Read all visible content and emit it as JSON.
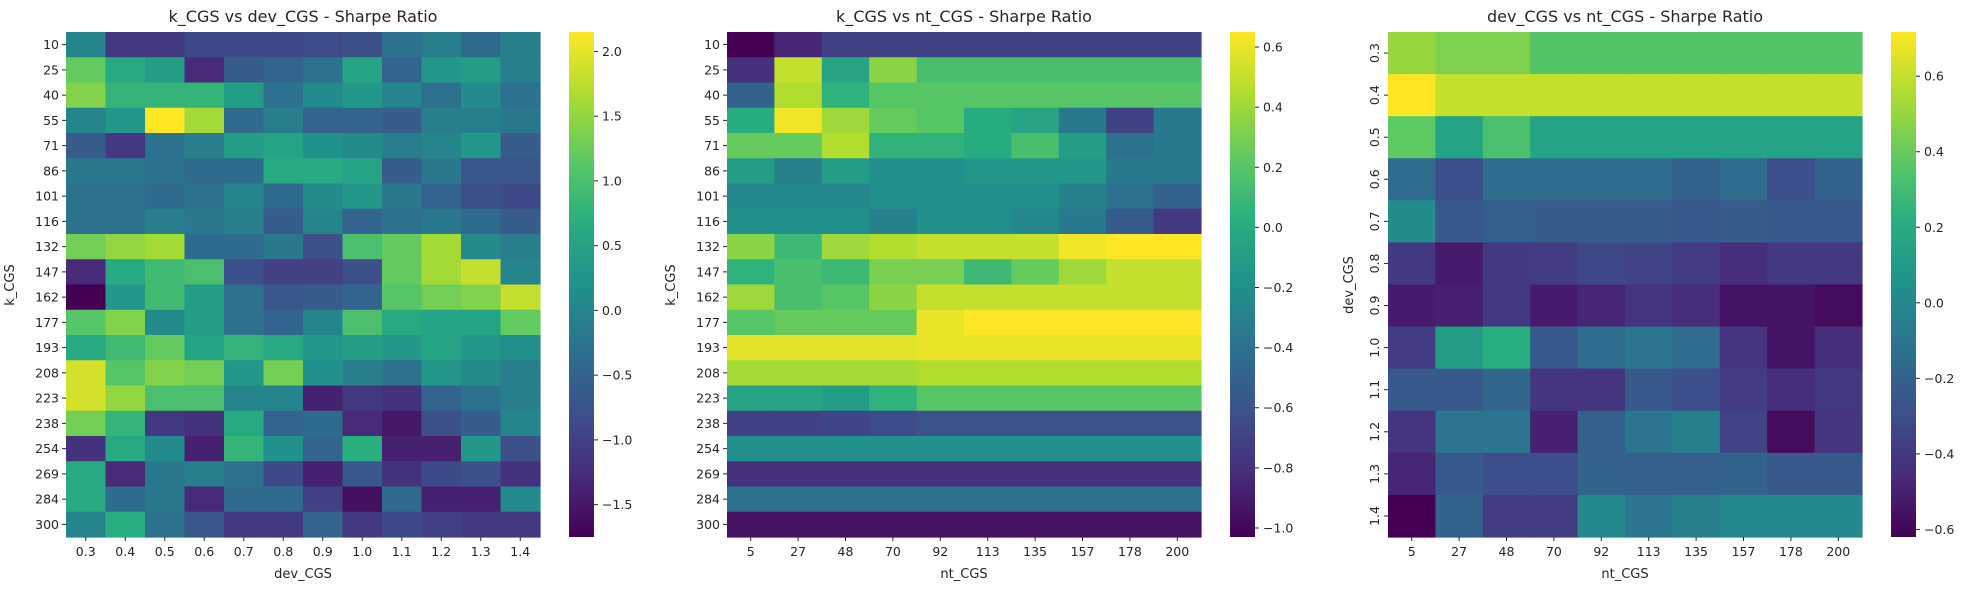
{
  "colormap": "viridis",
  "chart_data": [
    {
      "type": "heatmap",
      "title": "k_CGS vs dev_CGS - Sharpe Ratio",
      "xlabel": "dev_CGS",
      "ylabel": "k_CGS",
      "x_categories": [
        "0.3",
        "0.4",
        "0.5",
        "0.6",
        "0.7",
        "0.8",
        "0.9",
        "1.0",
        "1.1",
        "1.2",
        "1.3",
        "1.4"
      ],
      "y_categories": [
        "10",
        "25",
        "40",
        "55",
        "71",
        "86",
        "101",
        "116",
        "132",
        "147",
        "162",
        "177",
        "193",
        "208",
        "223",
        "238",
        "254",
        "269",
        "284",
        "300"
      ],
      "values": [
        [
          0.0,
          -1.1,
          -1.1,
          -0.9,
          -0.9,
          -0.9,
          -0.85,
          -0.8,
          -0.3,
          -0.1,
          -0.4,
          -0.1
        ],
        [
          1.2,
          0.6,
          0.4,
          -1.3,
          -0.6,
          -0.5,
          -0.3,
          0.5,
          -0.5,
          0.3,
          0.4,
          -0.1
        ],
        [
          1.4,
          0.8,
          0.8,
          0.8,
          0.4,
          -0.3,
          0.1,
          0.3,
          0.0,
          -0.3,
          0.1,
          -0.3
        ],
        [
          0.0,
          0.3,
          2.15,
          1.6,
          -0.4,
          -0.1,
          -0.5,
          -0.5,
          -0.6,
          -0.1,
          -0.1,
          -0.2
        ],
        [
          -0.6,
          -1.1,
          -0.3,
          -0.1,
          0.4,
          0.5,
          0.2,
          0.1,
          -0.1,
          0.0,
          0.3,
          -0.6
        ],
        [
          -0.2,
          -0.2,
          -0.3,
          -0.4,
          -0.4,
          0.6,
          0.6,
          0.5,
          -0.6,
          -0.2,
          -0.7,
          -0.7
        ],
        [
          -0.3,
          -0.3,
          -0.4,
          -0.3,
          0.0,
          -0.4,
          0.1,
          0.3,
          -0.2,
          -0.5,
          -0.8,
          -0.9
        ],
        [
          -0.3,
          -0.3,
          -0.1,
          -0.2,
          -0.1,
          -0.6,
          0.0,
          -0.5,
          -0.3,
          -0.2,
          -0.4,
          -0.6
        ],
        [
          1.3,
          1.5,
          1.6,
          -0.4,
          -0.4,
          -0.2,
          -0.8,
          1.0,
          1.2,
          1.6,
          0.1,
          -0.1
        ],
        [
          -1.3,
          0.6,
          0.9,
          1.0,
          -0.8,
          -1.0,
          -1.0,
          -0.8,
          1.2,
          1.6,
          1.8,
          0.0
        ],
        [
          -1.75,
          0.3,
          0.9,
          0.4,
          -0.3,
          -0.7,
          -0.6,
          -0.5,
          1.1,
          1.3,
          1.4,
          1.8
        ],
        [
          1.1,
          1.4,
          0.1,
          0.4,
          -0.3,
          -0.5,
          0.0,
          1.0,
          0.6,
          0.5,
          0.5,
          1.2
        ],
        [
          0.6,
          0.9,
          1.2,
          0.5,
          0.8,
          0.6,
          0.3,
          0.4,
          0.3,
          0.5,
          0.3,
          0.2
        ],
        [
          1.9,
          1.1,
          1.4,
          1.3,
          0.3,
          1.3,
          0.2,
          -0.1,
          -0.3,
          0.3,
          0.1,
          -0.1
        ],
        [
          1.9,
          1.5,
          1.0,
          1.0,
          0.0,
          0.0,
          -1.4,
          -1.1,
          -1.2,
          -0.5,
          -0.3,
          -0.1
        ],
        [
          1.3,
          0.8,
          -1.1,
          -1.2,
          0.6,
          -0.5,
          -0.4,
          -1.3,
          -1.5,
          -0.8,
          -0.6,
          0.0
        ],
        [
          -1.2,
          0.6,
          0.1,
          -1.4,
          0.8,
          0.2,
          -0.5,
          0.7,
          -1.4,
          -1.4,
          0.3,
          -0.8
        ],
        [
          0.6,
          -1.3,
          -0.2,
          -0.1,
          -0.3,
          -0.9,
          -1.4,
          -0.7,
          -1.2,
          -0.9,
          -0.8,
          -1.2
        ],
        [
          0.6,
          -0.4,
          -0.2,
          -1.3,
          -0.4,
          -0.4,
          -1.0,
          -1.6,
          -0.4,
          -1.4,
          -1.4,
          0.1
        ],
        [
          0.0,
          0.7,
          -0.3,
          -0.7,
          -1.1,
          -1.1,
          -0.5,
          -1.1,
          -0.9,
          -1.0,
          -1.1,
          -1.1
        ]
      ],
      "colorbar": {
        "range": [
          -1.75,
          2.15
        ],
        "ticks": [
          -1.5,
          -1.0,
          -0.5,
          0.0,
          0.5,
          1.0,
          1.5,
          2.0
        ],
        "tick_labels": [
          "−1.5",
          "−1.0",
          "−0.5",
          "0.0",
          "0.5",
          "1.0",
          "1.5",
          "2.0"
        ]
      }
    },
    {
      "type": "heatmap",
      "title": "k_CGS vs nt_CGS - Sharpe Ratio",
      "xlabel": "nt_CGS",
      "ylabel": "k_CGS",
      "x_categories": [
        "5",
        "27",
        "48",
        "70",
        "92",
        "113",
        "135",
        "157",
        "178",
        "200"
      ],
      "y_categories": [
        "10",
        "25",
        "40",
        "55",
        "71",
        "86",
        "101",
        "116",
        "132",
        "147",
        "162",
        "177",
        "193",
        "208",
        "223",
        "238",
        "254",
        "269",
        "284",
        "300"
      ],
      "values": [
        [
          -1.03,
          -0.85,
          -0.7,
          -0.7,
          -0.7,
          -0.7,
          -0.7,
          -0.7,
          -0.7,
          -0.7
        ],
        [
          -0.8,
          0.5,
          -0.05,
          0.35,
          0.15,
          0.15,
          0.15,
          0.15,
          0.15,
          0.15
        ],
        [
          -0.5,
          0.45,
          0.05,
          0.2,
          0.2,
          0.2,
          0.2,
          0.2,
          0.2,
          0.2
        ],
        [
          0.0,
          0.62,
          0.4,
          0.25,
          0.2,
          0.0,
          -0.05,
          -0.35,
          -0.7,
          -0.35
        ],
        [
          0.25,
          0.25,
          0.45,
          0.05,
          0.05,
          0.0,
          0.15,
          -0.1,
          -0.4,
          -0.35
        ],
        [
          -0.1,
          -0.3,
          -0.1,
          -0.2,
          -0.2,
          -0.15,
          -0.15,
          -0.15,
          -0.35,
          -0.35
        ],
        [
          -0.25,
          -0.25,
          -0.25,
          -0.2,
          -0.2,
          -0.2,
          -0.2,
          -0.3,
          -0.4,
          -0.5
        ],
        [
          -0.2,
          -0.2,
          -0.2,
          -0.3,
          -0.2,
          -0.2,
          -0.25,
          -0.35,
          -0.55,
          -0.75
        ],
        [
          0.35,
          0.1,
          0.4,
          0.45,
          0.5,
          0.5,
          0.5,
          0.62,
          0.65,
          0.65
        ],
        [
          0.05,
          0.15,
          0.1,
          0.3,
          0.3,
          0.1,
          0.25,
          0.4,
          0.5,
          0.5
        ],
        [
          0.4,
          0.15,
          0.2,
          0.35,
          0.5,
          0.5,
          0.5,
          0.5,
          0.5,
          0.5
        ],
        [
          0.2,
          0.25,
          0.25,
          0.25,
          0.6,
          0.65,
          0.65,
          0.65,
          0.65,
          0.65
        ],
        [
          0.58,
          0.58,
          0.58,
          0.58,
          0.6,
          0.6,
          0.6,
          0.6,
          0.6,
          0.6
        ],
        [
          0.42,
          0.42,
          0.42,
          0.42,
          0.45,
          0.45,
          0.45,
          0.45,
          0.45,
          0.45
        ],
        [
          -0.05,
          -0.05,
          -0.1,
          0.05,
          0.2,
          0.2,
          0.2,
          0.2,
          0.2,
          0.2
        ],
        [
          -0.7,
          -0.7,
          -0.68,
          -0.65,
          -0.6,
          -0.6,
          -0.6,
          -0.6,
          -0.6,
          -0.6
        ],
        [
          -0.2,
          -0.2,
          -0.2,
          -0.2,
          -0.2,
          -0.2,
          -0.2,
          -0.2,
          -0.2,
          -0.2
        ],
        [
          -0.8,
          -0.8,
          -0.8,
          -0.8,
          -0.8,
          -0.8,
          -0.8,
          -0.8,
          -0.8,
          -0.8
        ],
        [
          -0.4,
          -0.4,
          -0.4,
          -0.4,
          -0.4,
          -0.4,
          -0.4,
          -0.4,
          -0.4,
          -0.4
        ],
        [
          -0.95,
          -0.95,
          -0.95,
          -0.95,
          -0.95,
          -0.95,
          -0.95,
          -0.95,
          -0.95,
          -0.95
        ]
      ],
      "colorbar": {
        "range": [
          -1.03,
          0.65
        ],
        "ticks": [
          -1.0,
          -0.8,
          -0.6,
          -0.4,
          -0.2,
          0.0,
          0.2,
          0.4,
          0.6
        ],
        "tick_labels": [
          "−1.0",
          "−0.8",
          "−0.6",
          "−0.4",
          "−0.2",
          "0.0",
          "0.2",
          "0.4",
          "0.6"
        ]
      }
    },
    {
      "type": "heatmap",
      "title": "dev_CGS vs nt_CGS - Sharpe Ratio",
      "xlabel": "nt_CGS",
      "ylabel": "dev_CGS",
      "x_categories": [
        "5",
        "27",
        "48",
        "70",
        "92",
        "113",
        "135",
        "157",
        "178",
        "200"
      ],
      "y_categories": [
        "0.3",
        "0.4",
        "0.5",
        "0.6",
        "0.7",
        "0.8",
        "0.9",
        "1.0",
        "1.1",
        "1.2",
        "1.3",
        "1.4"
      ],
      "values": [
        [
          0.5,
          0.45,
          0.45,
          0.35,
          0.35,
          0.35,
          0.35,
          0.35,
          0.35,
          0.35
        ],
        [
          0.72,
          0.6,
          0.6,
          0.6,
          0.6,
          0.6,
          0.6,
          0.6,
          0.6,
          0.6
        ],
        [
          0.38,
          0.15,
          0.32,
          0.15,
          0.15,
          0.15,
          0.15,
          0.15,
          0.15,
          0.15
        ],
        [
          -0.15,
          -0.3,
          -0.15,
          -0.15,
          -0.15,
          -0.15,
          -0.2,
          -0.15,
          -0.3,
          -0.2
        ],
        [
          0.02,
          -0.25,
          -0.22,
          -0.23,
          -0.23,
          -0.23,
          -0.25,
          -0.23,
          -0.25,
          -0.25
        ],
        [
          -0.4,
          -0.52,
          -0.4,
          -0.38,
          -0.33,
          -0.35,
          -0.38,
          -0.45,
          -0.4,
          -0.4
        ],
        [
          -0.52,
          -0.5,
          -0.4,
          -0.52,
          -0.48,
          -0.42,
          -0.45,
          -0.55,
          -0.55,
          -0.58
        ],
        [
          -0.38,
          0.12,
          0.22,
          -0.25,
          -0.15,
          -0.1,
          -0.15,
          -0.42,
          -0.55,
          -0.45
        ],
        [
          -0.25,
          -0.25,
          -0.18,
          -0.42,
          -0.42,
          -0.25,
          -0.3,
          -0.38,
          -0.45,
          -0.4
        ],
        [
          -0.42,
          -0.1,
          -0.1,
          -0.5,
          -0.22,
          -0.1,
          -0.05,
          -0.35,
          -0.58,
          -0.42
        ],
        [
          -0.48,
          -0.25,
          -0.3,
          -0.3,
          -0.2,
          -0.22,
          -0.22,
          -0.2,
          -0.25,
          -0.25
        ],
        [
          -0.62,
          -0.2,
          -0.38,
          -0.38,
          0.0,
          -0.1,
          -0.05,
          0.0,
          0.0,
          0.0
        ]
      ],
      "colorbar": {
        "range": [
          -0.62,
          0.717
        ],
        "ticks": [
          -0.6,
          -0.4,
          -0.2,
          0.0,
          0.2,
          0.4,
          0.6
        ],
        "tick_labels": [
          "−0.6",
          "−0.4",
          "−0.2",
          "0.0",
          "0.2",
          "0.4",
          "0.6"
        ]
      }
    }
  ]
}
